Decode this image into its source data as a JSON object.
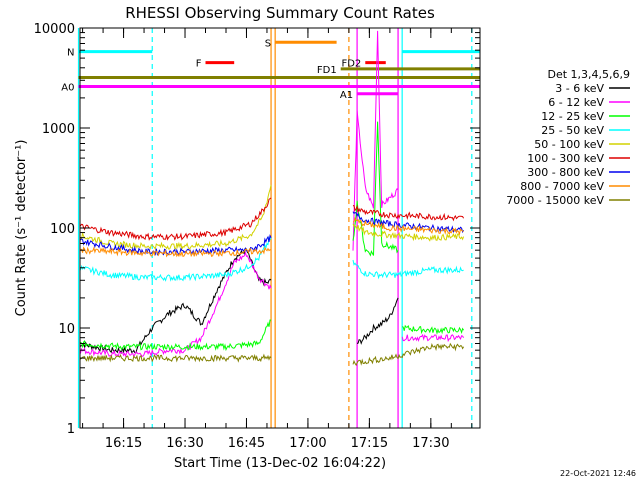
{
  "title": "RHESSI Observing Summary Count Rates",
  "footer_timestamp": "22-Oct-2021 12:46",
  "colors": {
    "3 - 6 keV": "#000000",
    "6 - 12 keV": "#ff00ff",
    "12 - 25 keV": "#00ff00",
    "25 - 50 keV": "#00ffff",
    "50 - 100 keV": "#d2d200",
    "100 - 300 keV": "#dd0000",
    "300 - 800 keV": "#0000ee",
    "800 - 7000 keV": "#ff8c00",
    "7000 - 15000 keV": "#808000"
  },
  "chart_data": {
    "type": "line",
    "title": "RHESSI Observing Summary Count Rates",
    "xlabel": "Start Time (13-Dec-02 16:04:22)",
    "ylabel": "Count Rate (s⁻¹ detector⁻¹)",
    "y_scale": "log",
    "ylim": [
      1,
      10000
    ],
    "xlim": [
      "16:04:22",
      "17:42"
    ],
    "x_tick_labels": [
      "16:15",
      "16:30",
      "16:45",
      "17:00",
      "17:15",
      "17:30"
    ],
    "y_tick_labels": [
      "1",
      "10",
      "100",
      "1000",
      "10000"
    ],
    "legend_title": "Det 1,3,4,5,6,9",
    "legend_position": "right",
    "series": [
      {
        "name": "3 - 6 keV",
        "segments": [
          [
            [
              "16:04",
              "7"
            ],
            [
              "16:12",
              "6"
            ],
            [
              "16:18",
              "6"
            ],
            [
              "16:22",
              "10"
            ],
            [
              "16:26",
              "14"
            ],
            [
              "16:30",
              "17"
            ],
            [
              "16:34",
              "11"
            ],
            [
              "16:38",
              "25"
            ],
            [
              "16:42",
              "50"
            ],
            [
              "16:45",
              "60"
            ],
            [
              "16:48",
              "30"
            ],
            [
              "16:50",
              "28"
            ],
            [
              "16:51",
              "30"
            ]
          ],
          [
            [
              "17:12",
              "7"
            ],
            [
              "17:14",
              "8"
            ],
            [
              "17:16",
              "10"
            ],
            [
              "17:18",
              "11"
            ],
            [
              "17:20",
              "13"
            ],
            [
              "17:22",
              "20"
            ]
          ]
        ]
      },
      {
        "name": "6 - 12 keV",
        "segments": [
          [
            [
              "16:04",
              "6"
            ],
            [
              "16:12",
              "5.5"
            ],
            [
              "16:20",
              "5.5"
            ],
            [
              "16:26",
              "6"
            ],
            [
              "16:30",
              "6"
            ],
            [
              "16:34",
              "8"
            ],
            [
              "16:38",
              "18"
            ],
            [
              "16:42",
              "45"
            ],
            [
              "16:45",
              "55"
            ],
            [
              "16:48",
              "32"
            ],
            [
              "16:51",
              "25"
            ]
          ],
          [
            [
              "17:11",
              "60"
            ],
            [
              "17:12",
              "1400"
            ],
            [
              "17:14",
              "250"
            ],
            [
              "17:16",
              "160"
            ],
            [
              "17:17",
              "9500"
            ],
            [
              "17:18",
              "170"
            ],
            [
              "17:20",
              "200"
            ],
            [
              "17:22",
              "240"
            ]
          ],
          [
            [
              "17:23",
              "8"
            ],
            [
              "17:30",
              "8"
            ],
            [
              "17:38",
              "8"
            ]
          ]
        ]
      },
      {
        "name": "12 - 25 keV",
        "segments": [
          [
            [
              "16:04",
              "7"
            ],
            [
              "16:15",
              "6.5"
            ],
            [
              "16:30",
              "6.5"
            ],
            [
              "16:40",
              "6.5"
            ],
            [
              "16:48",
              "7"
            ],
            [
              "16:51",
              "12"
            ]
          ],
          [
            [
              "17:11",
              "70"
            ],
            [
              "17:12",
              "180"
            ],
            [
              "17:14",
              "60"
            ],
            [
              "17:16",
              "55"
            ],
            [
              "17:17",
              "1200"
            ],
            [
              "17:18",
              "70"
            ],
            [
              "17:22",
              "60"
            ]
          ],
          [
            [
              "17:23",
              "10"
            ],
            [
              "17:30",
              "9.5"
            ],
            [
              "17:38",
              "9.5"
            ]
          ]
        ]
      },
      {
        "name": "25 - 50 keV",
        "segments": [
          [
            [
              "16:04",
              "40"
            ],
            [
              "16:12",
              "34"
            ],
            [
              "16:20",
              "32"
            ],
            [
              "16:30",
              "32"
            ],
            [
              "16:40",
              "34"
            ],
            [
              "16:45",
              "40"
            ],
            [
              "16:48",
              "50"
            ],
            [
              "16:51",
              "80"
            ]
          ],
          [
            [
              "17:11",
              "45"
            ],
            [
              "17:14",
              "35"
            ],
            [
              "17:18",
              "34"
            ],
            [
              "17:22",
              "34"
            ],
            [
              "17:30",
              "38"
            ],
            [
              "17:38",
              "38"
            ]
          ]
        ]
      },
      {
        "name": "50 - 100 keV",
        "segments": [
          [
            [
              "16:04",
              "85"
            ],
            [
              "16:12",
              "70"
            ],
            [
              "16:20",
              "66"
            ],
            [
              "16:30",
              "66"
            ],
            [
              "16:40",
              "70"
            ],
            [
              "16:46",
              "85"
            ],
            [
              "16:49",
              "130"
            ],
            [
              "16:51",
              "270"
            ]
          ],
          [
            [
              "17:11",
              "110"
            ],
            [
              "17:14",
              "90"
            ],
            [
              "17:20",
              "85"
            ],
            [
              "17:30",
              "80"
            ],
            [
              "17:38",
              "82"
            ]
          ]
        ]
      },
      {
        "name": "100 - 300 keV",
        "segments": [
          [
            [
              "16:04",
              "105"
            ],
            [
              "16:12",
              "90"
            ],
            [
              "16:20",
              "82"
            ],
            [
              "16:30",
              "82"
            ],
            [
              "16:40",
              "90"
            ],
            [
              "16:46",
              "110"
            ],
            [
              "16:49",
              "150"
            ],
            [
              "16:51",
              "200"
            ]
          ],
          [
            [
              "17:11",
              "160"
            ],
            [
              "17:14",
              "145"
            ],
            [
              "17:20",
              "135"
            ],
            [
              "17:30",
              "130"
            ],
            [
              "17:38",
              "125"
            ]
          ]
        ]
      },
      {
        "name": "300 - 800 keV",
        "segments": [
          [
            [
              "16:04",
              "75"
            ],
            [
              "16:12",
              "65"
            ],
            [
              "16:20",
              "58"
            ],
            [
              "16:30",
              "58"
            ],
            [
              "16:40",
              "60"
            ],
            [
              "16:46",
              "60"
            ],
            [
              "16:49",
              "70"
            ],
            [
              "16:51",
              "80"
            ]
          ],
          [
            [
              "17:11",
              "140"
            ],
            [
              "17:14",
              "120"
            ],
            [
              "17:20",
              "110"
            ],
            [
              "17:30",
              "100"
            ],
            [
              "17:38",
              "95"
            ]
          ]
        ]
      },
      {
        "name": "800 - 7000 keV",
        "segments": [
          [
            [
              "16:04",
              "60"
            ],
            [
              "16:12",
              "58"
            ],
            [
              "16:20",
              "56"
            ],
            [
              "16:30",
              "55"
            ],
            [
              "16:40",
              "56"
            ],
            [
              "16:46",
              "58"
            ],
            [
              "16:51",
              "60"
            ]
          ],
          [
            [
              "17:11",
              "120"
            ],
            [
              "17:14",
              "110"
            ],
            [
              "17:20",
              "100"
            ],
            [
              "17:30",
              "95"
            ],
            [
              "17:38",
              "92"
            ]
          ]
        ]
      },
      {
        "name": "7000 - 15000 keV",
        "segments": [
          [
            [
              "16:04",
              "5"
            ],
            [
              "16:15",
              "5"
            ],
            [
              "16:30",
              "5"
            ],
            [
              "16:40",
              "5"
            ],
            [
              "16:51",
              "5"
            ]
          ],
          [
            [
              "17:11",
              "4.5"
            ],
            [
              "17:20",
              "5"
            ],
            [
              "17:30",
              "6.5"
            ],
            [
              "17:38",
              "6.5"
            ]
          ]
        ]
      }
    ],
    "flag_bars": [
      {
        "label": "N",
        "color": "#00ffff",
        "start": "16:04",
        "end": "16:22",
        "value": 5800,
        "label_color": "#00ffff"
      },
      {
        "label": "",
        "color": "#00ffff",
        "start": "17:23",
        "end": "17:42",
        "value": 5800
      },
      {
        "label": "F",
        "color": "#ff0000",
        "start": "16:35",
        "end": "16:42",
        "value": 4500,
        "label_color": "#dd0000"
      },
      {
        "label": "S",
        "color": "#ff8c00",
        "start": "16:52",
        "end": "17:07",
        "value": 7200,
        "label_color": "#ff8c00"
      },
      {
        "label": "FD1",
        "color": "#808000",
        "start": "17:08",
        "end": "17:42",
        "value": 3900,
        "label_color": "#808000"
      },
      {
        "label": "",
        "color": "#808000",
        "start": "16:04",
        "end": "17:42",
        "value": 3200
      },
      {
        "label": "FD2",
        "color": "#ff0000",
        "start": "17:14",
        "end": "17:19",
        "value": 4500,
        "label_color": "#808000"
      },
      {
        "label": "A0",
        "color": "#ff00ff",
        "start": "16:04",
        "end": "17:42",
        "value": 2600,
        "label_color": "#ff00ff"
      },
      {
        "label": "A1",
        "color": "#ff00ff",
        "start": "17:12",
        "end": "17:22",
        "value": 2200,
        "label_color": "#ff00ff"
      }
    ],
    "vertical_lines": [
      {
        "time": "16:04",
        "color": "#00ffff",
        "style": "solid"
      },
      {
        "time": "16:22",
        "color": "#00ffff",
        "style": "dashed"
      },
      {
        "time": "16:51",
        "color": "#ff8c00",
        "style": "solid"
      },
      {
        "time": "16:52",
        "color": "#ff8c00",
        "style": "solid"
      },
      {
        "time": "17:10",
        "color": "#ff8c00",
        "style": "dashed"
      },
      {
        "time": "17:12",
        "color": "#ff00ff",
        "style": "solid"
      },
      {
        "time": "17:22",
        "color": "#ff00ff",
        "style": "solid"
      },
      {
        "time": "17:23",
        "color": "#00ffff",
        "style": "solid"
      },
      {
        "time": "17:40",
        "color": "#00ffff",
        "style": "dashed"
      }
    ],
    "grid": false
  }
}
